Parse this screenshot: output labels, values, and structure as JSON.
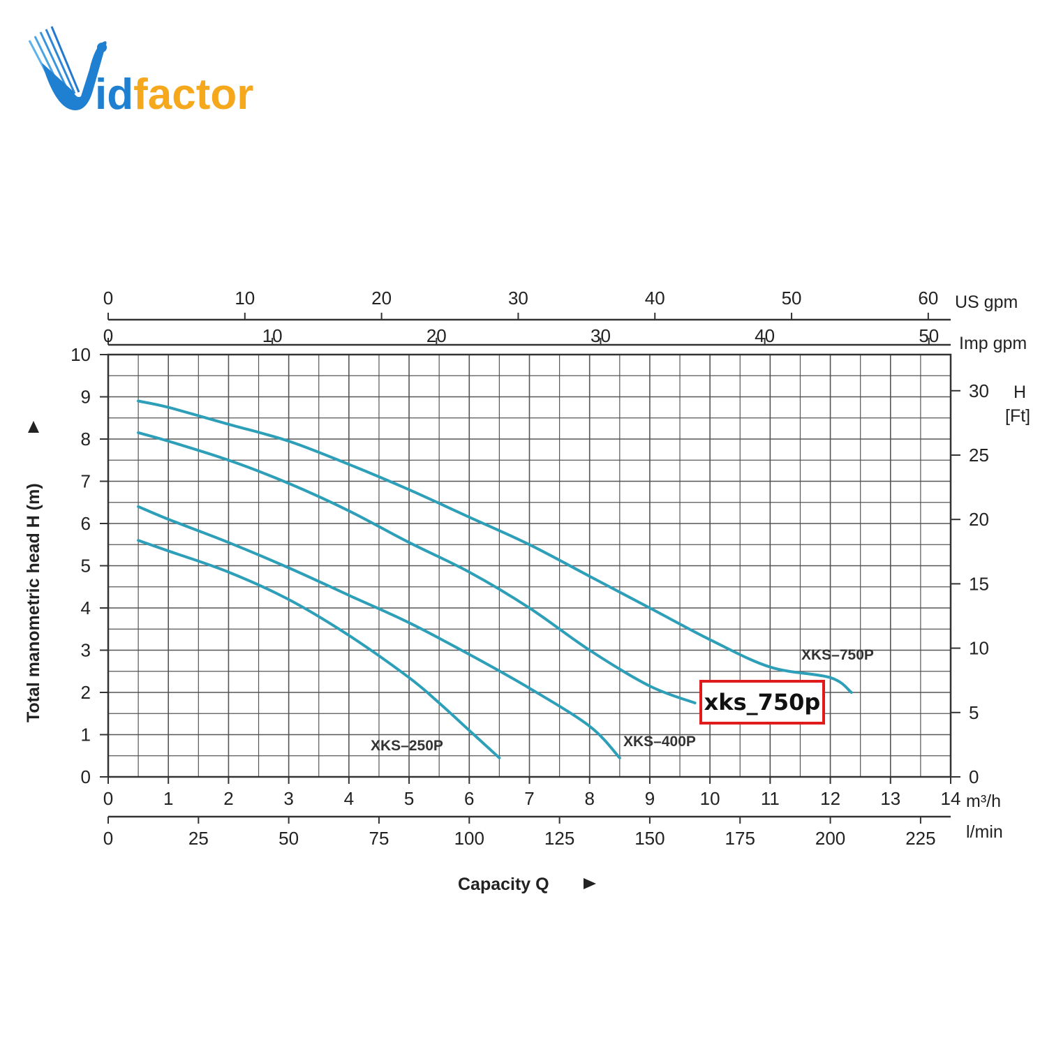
{
  "brand": {
    "name": "Vidfactor",
    "colors": {
      "blue": "#1f7fd0",
      "orange": "#f5a81c"
    }
  },
  "chart_data": {
    "type": "line",
    "title": "",
    "ylabel": "Total manometric head H (m)",
    "xlabel": "Capacity Q",
    "xlim": [
      0,
      14
    ],
    "ylim": [
      0,
      10
    ],
    "grid": true,
    "x_unit": "m³/h",
    "x_ticks": [
      "0",
      "1",
      "2",
      "3",
      "4",
      "5",
      "6",
      "7",
      "8",
      "9",
      "10",
      "11",
      "12",
      "13",
      "14"
    ],
    "y_ticks": [
      "0",
      "1",
      "2",
      "3",
      "4",
      "5",
      "6",
      "7",
      "8",
      "9",
      "10"
    ],
    "secondary_axes": {
      "lmin": {
        "unit": "l/min",
        "ticks": [
          "0",
          "25",
          "50",
          "75",
          "100",
          "125",
          "150",
          "175",
          "200",
          "225"
        ]
      },
      "imp_gpm": {
        "unit": "Imp gpm",
        "ticks": [
          "0",
          "10",
          "20",
          "30",
          "40",
          "50"
        ]
      },
      "us_gpm": {
        "unit": "US  gpm",
        "ticks": [
          "0",
          "10",
          "20",
          "30",
          "40",
          "50",
          "60"
        ]
      },
      "ft": {
        "unit_top": "H",
        "unit_bottom": "[Ft]",
        "ticks": [
          "0",
          "5",
          "10",
          "15",
          "20",
          "25",
          "30"
        ]
      }
    },
    "series": [
      {
        "name": "XKS–250P",
        "color": "#2e9fb8",
        "points": [
          [
            0.5,
            5.6
          ],
          [
            1,
            5.35
          ],
          [
            2,
            4.85
          ],
          [
            3,
            4.2
          ],
          [
            4,
            3.35
          ],
          [
            5,
            2.35
          ],
          [
            5.5,
            1.75
          ],
          [
            6,
            1.1
          ],
          [
            6.5,
            0.45
          ]
        ]
      },
      {
        "name": "XKS–400P",
        "color": "#2e9fb8",
        "points": [
          [
            0.5,
            6.4
          ],
          [
            1,
            6.1
          ],
          [
            2,
            5.55
          ],
          [
            3,
            4.95
          ],
          [
            4,
            4.3
          ],
          [
            5,
            3.65
          ],
          [
            6,
            2.9
          ],
          [
            7,
            2.1
          ],
          [
            8,
            1.2
          ],
          [
            8.5,
            0.45
          ]
        ]
      },
      {
        "name": "",
        "color": "#2e9fb8",
        "points": [
          [
            0.5,
            8.15
          ],
          [
            1,
            7.95
          ],
          [
            2,
            7.5
          ],
          [
            3,
            6.95
          ],
          [
            4,
            6.3
          ],
          [
            5,
            5.55
          ],
          [
            6,
            4.85
          ],
          [
            7,
            4.0
          ],
          [
            8,
            3.0
          ],
          [
            9,
            2.15
          ],
          [
            9.75,
            1.75
          ]
        ]
      },
      {
        "name": "XKS–750P",
        "color": "#2e9fb8",
        "points": [
          [
            0.5,
            8.9
          ],
          [
            1,
            8.75
          ],
          [
            2,
            8.35
          ],
          [
            3,
            7.95
          ],
          [
            4,
            7.4
          ],
          [
            5,
            6.8
          ],
          [
            6,
            6.15
          ],
          [
            7,
            5.5
          ],
          [
            8,
            4.75
          ],
          [
            9,
            4.0
          ],
          [
            10,
            3.25
          ],
          [
            11,
            2.6
          ],
          [
            12,
            2.35
          ],
          [
            12.35,
            2.0
          ]
        ]
      }
    ],
    "annotations": [
      {
        "text": "xks_750p",
        "style": "red-box"
      }
    ]
  }
}
